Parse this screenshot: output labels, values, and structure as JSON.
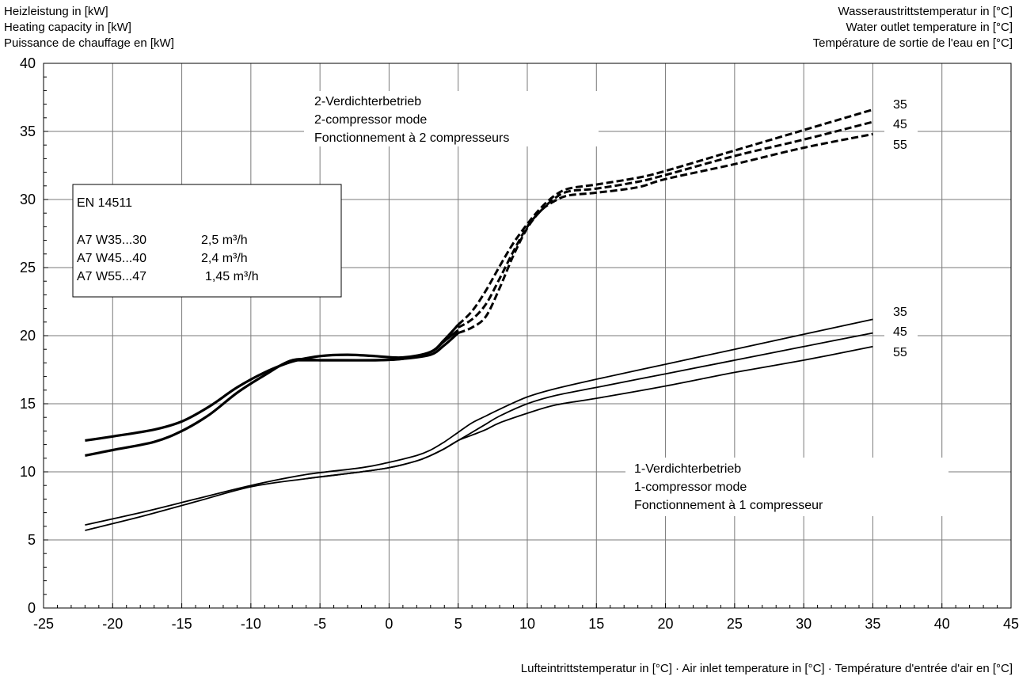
{
  "chart_data": {
    "type": "line",
    "ylabel_lines": [
      "Heizleistung in [kW]",
      "Heating capacity in [kW]",
      "Puissance de chauffage en [kW]"
    ],
    "right_label_lines": [
      "Wasseraustrittstemperatur in [°C]",
      "Water outlet temperature in [°C]",
      "Température de sortie de l'eau en [°C]"
    ],
    "xlabel": "Lufteintrittstemperatur in [°C] · Air inlet temperature in [°C] · Température d'entrée d'air en [°C]",
    "xlim": [
      -25,
      45
    ],
    "ylim": [
      0,
      40
    ],
    "xticks": [
      -25,
      -20,
      -15,
      -10,
      -5,
      0,
      5,
      10,
      15,
      20,
      25,
      30,
      35,
      40,
      45
    ],
    "yticks": [
      0,
      5,
      10,
      15,
      20,
      25,
      30,
      35,
      40
    ],
    "grid": true,
    "legend_box": {
      "title": "EN 14511",
      "rows": [
        {
          "condition": "A7 W35...30",
          "flow": "2,5 m³/h"
        },
        {
          "condition": "A7 W45...40",
          "flow": "2,4 m³/h"
        },
        {
          "condition": "A7 W55...47",
          "flow": "1,45 m³/h"
        }
      ]
    },
    "annotations": {
      "two_compressor": [
        "2-Verdichterbetrieb",
        "2-compressor mode",
        "Fonctionnement à 2 compresseurs"
      ],
      "one_compressor": [
        "1-Verdichterbetrieb",
        "1-compressor mode",
        "Fonctionnement à 1 compresseur"
      ]
    },
    "series": [
      {
        "label": "35",
        "group": "2-compressor",
        "style": "solid-bold",
        "points": [
          [
            -22,
            12.3
          ],
          [
            -20,
            12.6
          ],
          [
            -17,
            13.1
          ],
          [
            -15,
            13.7
          ],
          [
            -13,
            14.8
          ],
          [
            -11,
            16.2
          ],
          [
            -9,
            17.3
          ],
          [
            -7,
            18.1
          ],
          [
            -5,
            18.5
          ],
          [
            -3,
            18.6
          ],
          [
            -1,
            18.5
          ],
          [
            1,
            18.4
          ],
          [
            3,
            18.8
          ],
          [
            4,
            19.6
          ],
          [
            5,
            20.4
          ]
        ]
      },
      {
        "label": "45",
        "group": "2-compressor",
        "style": "solid-bold",
        "points": [
          [
            -22,
            11.2
          ],
          [
            -20,
            11.6
          ],
          [
            -17,
            12.2
          ],
          [
            -15,
            13.0
          ],
          [
            -13,
            14.2
          ],
          [
            -11,
            15.8
          ],
          [
            -9,
            17.1
          ],
          [
            -7,
            18.2
          ],
          [
            -5,
            18.2
          ],
          [
            -3,
            18.2
          ],
          [
            -1,
            18.2
          ],
          [
            1,
            18.3
          ],
          [
            3,
            18.8
          ],
          [
            4,
            19.7
          ],
          [
            5,
            20.8
          ]
        ]
      },
      {
        "label": "55",
        "group": "2-compressor",
        "style": "solid-bold",
        "points": [
          [
            -7,
            18.2
          ],
          [
            -5,
            18.2
          ],
          [
            -1,
            18.2
          ],
          [
            1,
            18.3
          ],
          [
            3,
            18.6
          ],
          [
            4,
            19.3
          ],
          [
            5,
            20.2
          ]
        ]
      },
      {
        "label": "35",
        "group": "2-compressor",
        "style": "dashed",
        "points": [
          [
            5,
            20.8
          ],
          [
            6,
            21.8
          ],
          [
            7,
            23.3
          ],
          [
            8,
            25.1
          ],
          [
            9,
            26.8
          ],
          [
            10,
            28.2
          ],
          [
            11,
            29.4
          ],
          [
            12,
            30.3
          ],
          [
            13,
            30.8
          ],
          [
            15,
            31.1
          ],
          [
            18,
            31.6
          ],
          [
            20,
            32.1
          ],
          [
            25,
            33.6
          ],
          [
            30,
            35.1
          ],
          [
            35,
            36.6
          ]
        ]
      },
      {
        "label": "45",
        "group": "2-compressor",
        "style": "dashed",
        "points": [
          [
            5,
            20.6
          ],
          [
            6,
            21.2
          ],
          [
            7,
            22.3
          ],
          [
            8,
            24.2
          ],
          [
            9,
            26.2
          ],
          [
            10,
            28.0
          ],
          [
            11,
            29.2
          ],
          [
            12,
            30.1
          ],
          [
            13,
            30.6
          ],
          [
            15,
            30.8
          ],
          [
            18,
            31.3
          ],
          [
            20,
            31.8
          ],
          [
            25,
            33.2
          ],
          [
            30,
            34.4
          ],
          [
            35,
            35.7
          ]
        ]
      },
      {
        "label": "55",
        "group": "2-compressor",
        "style": "dashed",
        "points": [
          [
            5,
            20.2
          ],
          [
            6,
            20.6
          ],
          [
            7,
            21.4
          ],
          [
            8,
            23.5
          ],
          [
            9,
            25.9
          ],
          [
            10,
            27.9
          ],
          [
            11,
            29.2
          ],
          [
            12,
            29.9
          ],
          [
            13,
            30.3
          ],
          [
            15,
            30.5
          ],
          [
            18,
            30.9
          ],
          [
            20,
            31.5
          ],
          [
            25,
            32.6
          ],
          [
            30,
            33.8
          ],
          [
            35,
            34.8
          ]
        ]
      },
      {
        "label": "35",
        "group": "1-compressor",
        "style": "solid",
        "points": [
          [
            -22,
            6.1
          ],
          [
            -18,
            7.0
          ],
          [
            -14,
            8.0
          ],
          [
            -10,
            9.0
          ],
          [
            -6,
            9.8
          ],
          [
            -2,
            10.3
          ],
          [
            0,
            10.7
          ],
          [
            2,
            11.2
          ],
          [
            3,
            11.6
          ],
          [
            4,
            12.2
          ],
          [
            5,
            12.9
          ],
          [
            6,
            13.6
          ],
          [
            7,
            14.1
          ],
          [
            8,
            14.6
          ],
          [
            10,
            15.5
          ],
          [
            12,
            16.1
          ],
          [
            15,
            16.8
          ],
          [
            20,
            17.9
          ],
          [
            25,
            19.0
          ],
          [
            30,
            20.1
          ],
          [
            35,
            21.2
          ]
        ]
      },
      {
        "label": "45",
        "group": "1-compressor",
        "style": "solid",
        "points": [
          [
            -22,
            5.7
          ],
          [
            -18,
            6.7
          ],
          [
            -14,
            7.8
          ],
          [
            -10,
            8.9
          ],
          [
            -6,
            9.5
          ],
          [
            -2,
            10.0
          ],
          [
            0,
            10.3
          ],
          [
            2,
            10.8
          ],
          [
            3,
            11.2
          ],
          [
            4,
            11.7
          ],
          [
            5,
            12.3
          ],
          [
            6,
            12.9
          ],
          [
            7,
            13.5
          ],
          [
            8,
            14.1
          ],
          [
            10,
            15.0
          ],
          [
            12,
            15.6
          ],
          [
            15,
            16.2
          ],
          [
            20,
            17.2
          ],
          [
            25,
            18.2
          ],
          [
            30,
            19.2
          ],
          [
            35,
            20.2
          ]
        ]
      },
      {
        "label": "55",
        "group": "1-compressor",
        "style": "solid",
        "points": [
          [
            -6,
            9.5
          ],
          [
            -2,
            10.0
          ],
          [
            0,
            10.3
          ],
          [
            2,
            10.8
          ],
          [
            3,
            11.2
          ],
          [
            4,
            11.7
          ],
          [
            5,
            12.3
          ],
          [
            6,
            12.7
          ],
          [
            7,
            13.1
          ],
          [
            8,
            13.6
          ],
          [
            10,
            14.3
          ],
          [
            12,
            14.9
          ],
          [
            15,
            15.4
          ],
          [
            20,
            16.3
          ],
          [
            25,
            17.3
          ],
          [
            30,
            18.2
          ],
          [
            35,
            19.2
          ]
        ]
      }
    ],
    "end_labels": {
      "two_compressor": [
        "35",
        "45",
        "55"
      ],
      "one_compressor": [
        "35",
        "45",
        "55"
      ]
    }
  }
}
